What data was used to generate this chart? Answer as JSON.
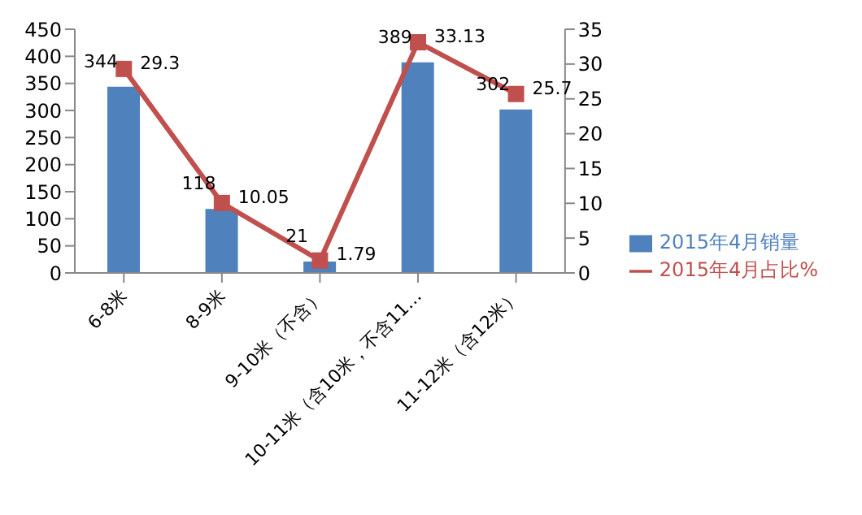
{
  "chart_data": {
    "type": "bar",
    "categories": [
      "6-8米",
      "8-9米",
      "9-10米（不含）",
      "10-11米（含10米，不含11…",
      "11-12米（含12米）"
    ],
    "series": [
      {
        "name": "2015年4月销量",
        "color": "#4f81bd",
        "values": [
          344,
          118,
          21,
          389,
          302
        ]
      },
      {
        "name": "2015年4月占比%",
        "type": "line",
        "axis": "y2",
        "color": "#c0504d",
        "values": [
          29.3,
          10.05,
          1.79,
          33.13,
          25.7
        ]
      }
    ],
    "ylim": [
      0,
      450
    ],
    "yticks": [
      0,
      50,
      100,
      150,
      200,
      250,
      300,
      350,
      400,
      450
    ],
    "y2lim": [
      0,
      35
    ],
    "y2ticks": [
      0,
      5,
      10,
      15,
      20,
      25,
      30,
      35
    ],
    "data_labels": true,
    "legend": "right",
    "marker": "square",
    "line_style": "solid"
  }
}
